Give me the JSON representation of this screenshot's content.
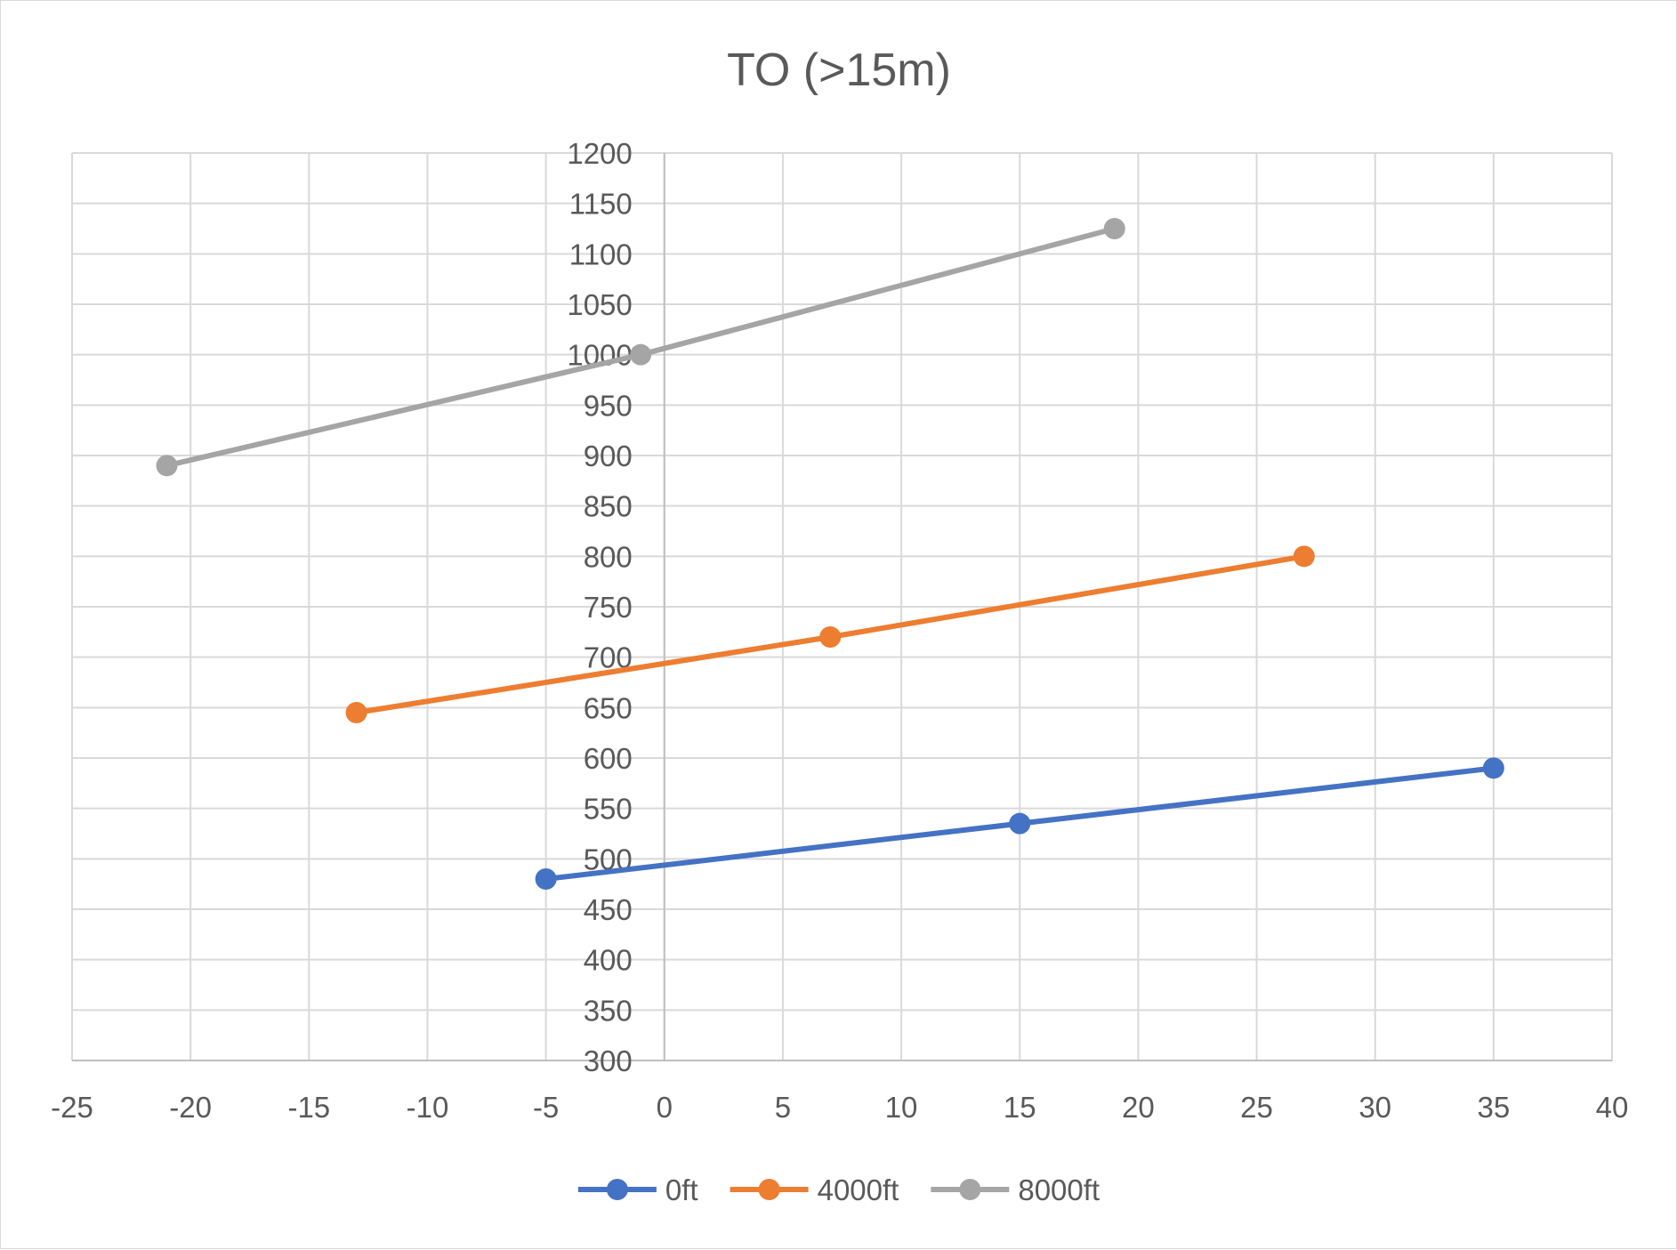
{
  "chart_data": {
    "type": "line",
    "title": "TO (>15m)",
    "xlabel": "",
    "ylabel": "",
    "xlim": [
      -25,
      40
    ],
    "ylim": [
      300,
      1200
    ],
    "x_ticks": [
      -25,
      -20,
      -15,
      -10,
      -5,
      0,
      5,
      10,
      15,
      20,
      25,
      30,
      35,
      40
    ],
    "y_ticks": [
      300,
      350,
      400,
      450,
      500,
      550,
      600,
      650,
      700,
      750,
      800,
      850,
      900,
      950,
      1000,
      1050,
      1100,
      1150,
      1200
    ],
    "grid": true,
    "legend_position": "bottom",
    "series": [
      {
        "name": "0ft",
        "color": "#4472C4",
        "points": [
          [
            -5,
            480
          ],
          [
            15,
            535
          ],
          [
            35,
            590
          ]
        ]
      },
      {
        "name": "4000ft",
        "color": "#ED7D31",
        "points": [
          [
            -13,
            645
          ],
          [
            7,
            720
          ],
          [
            27,
            800
          ]
        ]
      },
      {
        "name": "8000ft",
        "color": "#A5A5A5",
        "points": [
          [
            -21,
            890
          ],
          [
            -1,
            1000
          ],
          [
            19,
            1125
          ]
        ]
      }
    ]
  }
}
